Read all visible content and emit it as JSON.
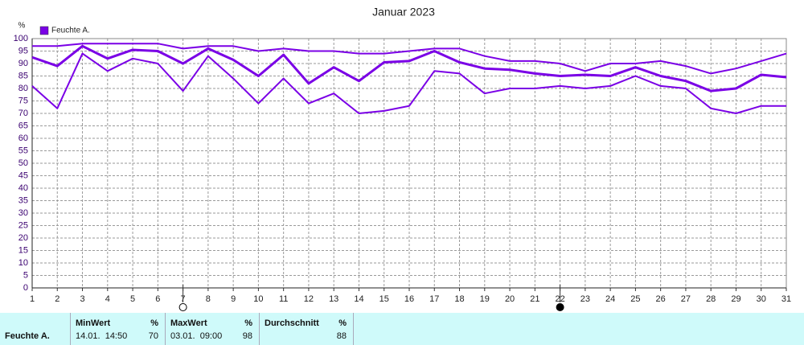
{
  "chart_data": {
    "type": "line",
    "title": "Januar 2023",
    "y_unit": "%",
    "x": [
      1,
      2,
      3,
      4,
      5,
      6,
      7,
      8,
      9,
      10,
      11,
      12,
      13,
      14,
      15,
      16,
      17,
      18,
      19,
      20,
      21,
      22,
      23,
      24,
      25,
      26,
      27,
      28,
      29,
      30,
      31
    ],
    "xlim": [
      1,
      31
    ],
    "xticks": [
      1,
      2,
      3,
      4,
      5,
      6,
      7,
      8,
      9,
      10,
      11,
      12,
      13,
      14,
      15,
      16,
      17,
      18,
      19,
      20,
      21,
      22,
      23,
      24,
      25,
      26,
      27,
      28,
      29,
      30,
      31
    ],
    "ylim": [
      0,
      100
    ],
    "yticks": [
      0,
      5,
      10,
      15,
      20,
      25,
      30,
      35,
      40,
      45,
      50,
      55,
      60,
      65,
      70,
      75,
      80,
      85,
      90,
      95,
      100
    ],
    "grid": true,
    "moon_phases": {
      "full": 7,
      "new": 22
    },
    "series": [
      {
        "name": "Feuchte A.",
        "color": "#7a00e6",
        "values": [
          92.5,
          89,
          97,
          92,
          95.5,
          95,
          90,
          96,
          91.5,
          85,
          93.5,
          82,
          88.5,
          83,
          90.5,
          91,
          95,
          90.5,
          88,
          87.5,
          86,
          85,
          85.5,
          85,
          88.5,
          85,
          83,
          79,
          80,
          85.5,
          84.5
        ],
        "high": [
          97,
          97,
          98,
          98,
          98,
          98,
          96,
          97,
          97,
          95,
          96,
          95,
          95,
          94,
          94,
          95,
          96,
          96,
          93,
          91,
          91,
          90,
          87,
          90,
          90,
          91,
          89,
          86,
          88,
          91,
          94
        ],
        "low": [
          81,
          72,
          94,
          87,
          92,
          90,
          79,
          93,
          84,
          74,
          84,
          74,
          78,
          70,
          71,
          73,
          87,
          86,
          78,
          80,
          80,
          81,
          80,
          81,
          85,
          81,
          80,
          72,
          70,
          73,
          73
        ]
      }
    ]
  },
  "table": {
    "row_label": "Feuchte A.",
    "columns": [
      {
        "header": "MinWert",
        "unit": "%",
        "time": "14.01.  14:50",
        "value": 70
      },
      {
        "header": "MaxWert",
        "unit": "%",
        "time": "03.01.  09:00",
        "value": 98
      },
      {
        "header": "Durchschnitt",
        "unit": "%",
        "value": 88
      }
    ]
  }
}
